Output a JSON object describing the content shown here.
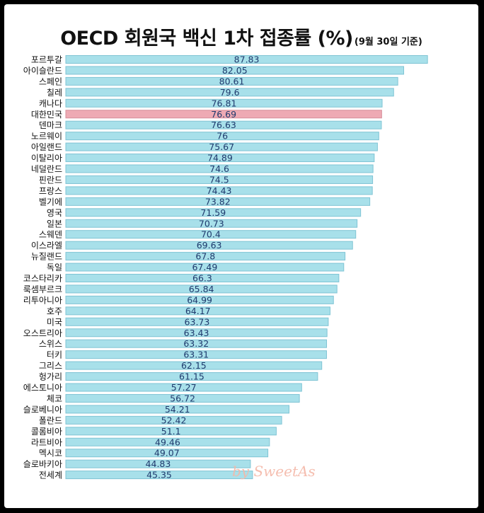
{
  "chart_data": {
    "type": "bar",
    "orientation": "horizontal",
    "title": "OECD 회원국 백신 1차 접종률 (%)",
    "subtitle": "(9월 30일 기준)",
    "categories": [
      "포르투갈",
      "아이슬란드",
      "스페인",
      "칠레",
      "캐나다",
      "대한민국",
      "덴마크",
      "노르웨이",
      "아일랜드",
      "이탈리아",
      "네덜란드",
      "핀란드",
      "프랑스",
      "벨기에",
      "영국",
      "일본",
      "스웨덴",
      "이스라엘",
      "뉴질랜드",
      "독일",
      "코스타리카",
      "룩셈부르크",
      "리투아니아",
      "호주",
      "미국",
      "오스트리아",
      "스위스",
      "터키",
      "그리스",
      "헝가리",
      "에스토니아",
      "체코",
      "슬로베니아",
      "폴란드",
      "콜롬비아",
      "라트비아",
      "멕시코",
      "슬로바키아",
      "전세계"
    ],
    "value_labels": [
      "87.83",
      "82.05",
      "80.61",
      "79.6",
      "76.81",
      "76.69",
      "76.63",
      "76",
      "75.67",
      "74.89",
      "74.6",
      "74.5",
      "74.43",
      "73.82",
      "71.59",
      "70.73",
      "70.4",
      "69.63",
      "67.8",
      "67.49",
      "66.3",
      "65.84",
      "64.99",
      "64.17",
      "63.73",
      "63.43",
      "63.32",
      "63.31",
      "62.15",
      "61.15",
      "57.27",
      "56.72",
      "54.21",
      "52.42",
      "51.1",
      "49.46",
      "49.07",
      "44.83",
      "45.35"
    ],
    "values": [
      87.83,
      82.05,
      80.61,
      79.6,
      76.81,
      76.69,
      76.63,
      76,
      75.67,
      74.89,
      74.6,
      74.5,
      74.43,
      73.82,
      71.59,
      70.73,
      70.4,
      69.63,
      67.8,
      67.49,
      66.3,
      65.84,
      64.99,
      64.17,
      63.73,
      63.43,
      63.32,
      63.31,
      62.15,
      61.15,
      57.27,
      56.72,
      54.21,
      52.42,
      51.1,
      49.46,
      49.07,
      44.83,
      45.35
    ],
    "highlight": "대한민국",
    "xlim": [
      0,
      100
    ],
    "grid": false,
    "legend": "none"
  },
  "colors": {
    "bar": "#a8e0ea",
    "bar_border": "#7fc4d4",
    "highlight_bar": "#eeaab4",
    "highlight_border": "#d68d99",
    "value_text": "#1f3a6d",
    "label_text": "#111111"
  },
  "watermark": "by SweetAs"
}
